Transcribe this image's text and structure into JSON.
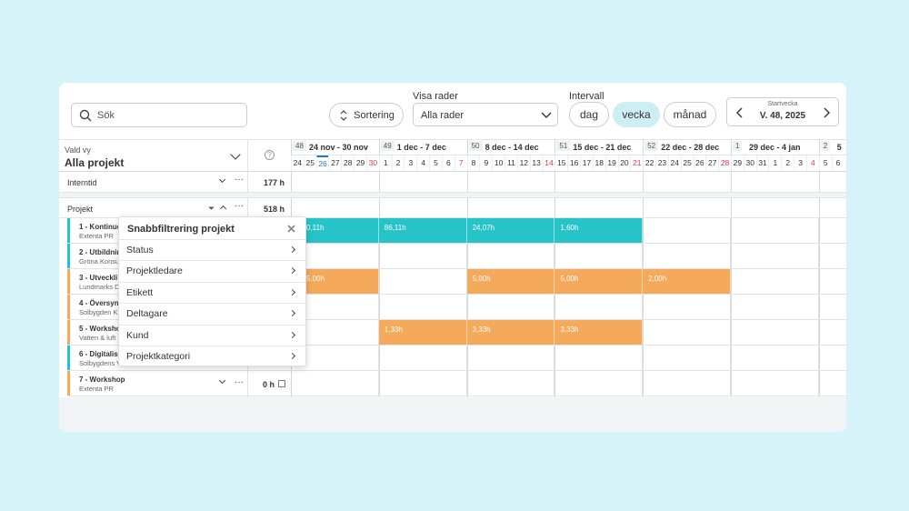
{
  "toolbar": {
    "search_placeholder": "Sök",
    "sort_button": "Sortering",
    "rows_label": "Visa rader",
    "rows_value": "Alla rader",
    "interval_label": "Intervall",
    "intervals": [
      "dag",
      "vecka",
      "månad"
    ],
    "active_interval": "vecka",
    "start_week_label": "Startvecka",
    "start_week_value": "V. 48, 2025"
  },
  "grid": {
    "view_label": "Vald vy",
    "view_value": "Alla projekt",
    "weeks": [
      {
        "number": "48",
        "range": "24 nov - 30 nov",
        "days": [
          "24",
          "25",
          "26",
          "27",
          "28",
          "29",
          "30"
        ]
      },
      {
        "number": "49",
        "range": "1 dec - 7 dec",
        "days": [
          "1",
          "2",
          "3",
          "4",
          "5",
          "6",
          "7"
        ]
      },
      {
        "number": "50",
        "range": "8 dec - 14 dec",
        "days": [
          "8",
          "9",
          "10",
          "11",
          "12",
          "13",
          "14"
        ]
      },
      {
        "number": "51",
        "range": "15 dec - 21 dec",
        "days": [
          "15",
          "16",
          "17",
          "18",
          "19",
          "20",
          "21"
        ]
      },
      {
        "number": "52",
        "range": "22 dec - 28 dec",
        "days": [
          "22",
          "23",
          "24",
          "25",
          "26",
          "27",
          "28"
        ]
      },
      {
        "number": "1",
        "range": "29 dec - 4 jan",
        "days": [
          "29",
          "30",
          "31",
          "1",
          "2",
          "3",
          "4"
        ]
      },
      {
        "number": "2",
        "range": "5",
        "days": [
          "5",
          "6"
        ]
      }
    ],
    "internal": {
      "name": "Interntid",
      "hours": "177 h"
    },
    "projects_header": {
      "name": "Projekt",
      "hours": "518 h"
    },
    "rows": [
      {
        "name": "1 - Kontinue",
        "client": "Extenta PR",
        "color": "#26c4c9",
        "cells": [
          "0,11h",
          "86,11h",
          "24,07h",
          "1,60h",
          null,
          null,
          null
        ]
      },
      {
        "name": "2 - Utbildnin",
        "client": "Gröna Konsu",
        "color": "#26c4c9",
        "cells": [
          null,
          null,
          null,
          null,
          null,
          null,
          null
        ]
      },
      {
        "name": "3 - Utveckli",
        "client": "Lundmarks D",
        "color": "#f5a95a",
        "cells": [
          "5,00h",
          null,
          "5,00h",
          "5,00h",
          "2,00h",
          null,
          null
        ]
      },
      {
        "name": "4 - Översyn",
        "client": "Solbygden K",
        "color": "#f5a95a",
        "cells": [
          null,
          null,
          null,
          null,
          null,
          null,
          null
        ]
      },
      {
        "name": "5 - Worksho",
        "client": "Vatten & luft",
        "color": "#f5a95a",
        "cells": [
          null,
          "1,33h",
          "3,33h",
          "3,33h",
          null,
          null,
          null
        ]
      },
      {
        "name": "6 - Digitalis",
        "client": "Solbygdens V",
        "color": "#26c4c9",
        "cells": [
          null,
          null,
          null,
          null,
          null,
          null,
          null
        ]
      },
      {
        "name": "7 - Workshop",
        "client": "Extenta PR",
        "color": "#f5a95a",
        "hours": "0 h",
        "cells": [
          null,
          null,
          null,
          null,
          null,
          null,
          null
        ]
      }
    ]
  },
  "popup": {
    "title": "Snabbfiltrering projekt",
    "items": [
      "Status",
      "Projektledare",
      "Etikett",
      "Deltagare",
      "Kund",
      "Projektkategori"
    ]
  }
}
